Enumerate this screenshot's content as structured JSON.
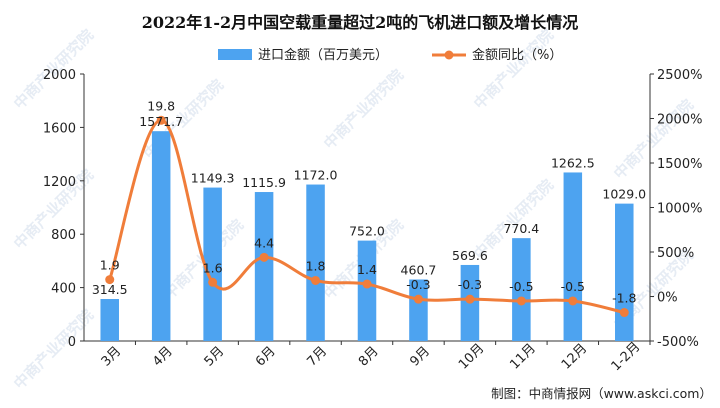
{
  "colors": {
    "bar": "#4da3f0",
    "line": "#f07d3a",
    "axis": "#333333"
  },
  "watermark": {
    "text": "中商产业研究院",
    "icon": "brand-logo-watermark"
  },
  "source": "制图：中商情报网（www.askci.com）",
  "chart_data": {
    "type": "bar+line",
    "title": "2022年1-2月中国空载重量超过2吨的飞机进口额及增长情况",
    "categories": [
      "3月",
      "4月",
      "5月",
      "6月",
      "7月",
      "8月",
      "9月",
      "10月",
      "11月",
      "12月",
      "1-2月"
    ],
    "series": [
      {
        "name": "进口金额（百万美元）",
        "type": "bar",
        "axis": "left",
        "values": [
          314.5,
          1571.7,
          1149.3,
          1115.9,
          1172.0,
          752.0,
          460.7,
          569.6,
          770.4,
          1262.5,
          1029.0
        ],
        "labels": [
          "314.5",
          "1571.7",
          "1149.3",
          "1115.9",
          "1172.0",
          "752.0",
          "460.7",
          "569.6",
          "770.4",
          "1262.5",
          "1029.0"
        ]
      },
      {
        "name": "金额同比（%）",
        "type": "line",
        "axis": "right",
        "values": [
          190,
          1980,
          160,
          440,
          180,
          140,
          -30,
          -30,
          -50,
          -50,
          -180
        ],
        "labels": [
          "1.9",
          "19.8",
          "1.6",
          "4.4",
          "1.8",
          "1.4",
          "-0.3",
          "-0.3",
          "-0.5",
          "-0.5",
          "-1.8"
        ]
      }
    ],
    "y_left": {
      "min": 0,
      "max": 2000,
      "step": 400,
      "ticks": [
        "0",
        "400",
        "800",
        "1200",
        "1600",
        "2000"
      ]
    },
    "y_right": {
      "min": -500,
      "max": 2500,
      "step": 500,
      "ticks": [
        "-500%",
        "0%",
        "500%",
        "1000%",
        "1500%",
        "2000%",
        "2500%"
      ]
    },
    "legend_position": "top-center",
    "grid": false
  }
}
